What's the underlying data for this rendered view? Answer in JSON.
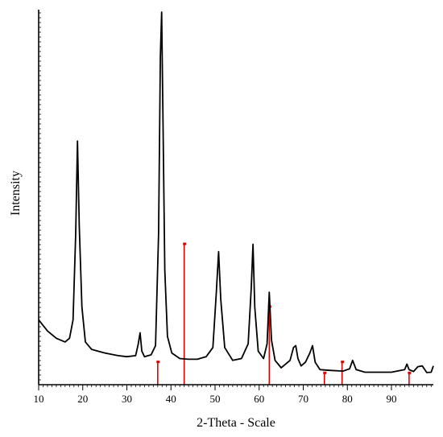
{
  "chart_data": {
    "type": "line",
    "xlabel": "2-Theta - Scale",
    "ylabel": "Intensity",
    "xlim": [
      10,
      99.5
    ],
    "ylim": [
      0,
      100
    ],
    "x_ticks": [
      10,
      20,
      30,
      40,
      50,
      60,
      70,
      80,
      90
    ],
    "grid": false,
    "series": [
      {
        "color": "#000000",
        "x": [
          10,
          12,
          14,
          16,
          17,
          17.8,
          18.4,
          18.8,
          19.2,
          19.8,
          20.6,
          22,
          25,
          28,
          30,
          32,
          32.6,
          33,
          33.4,
          34,
          35.5,
          36.5,
          37.2,
          37.6,
          37.9,
          38.2,
          38.6,
          39.2,
          40.2,
          42,
          44,
          46,
          48,
          49.5,
          50.3,
          50.8,
          51.3,
          52.2,
          54,
          56,
          57.5,
          58.2,
          58.6,
          59,
          59.8,
          61,
          61.8,
          62.3,
          62.8,
          63.6,
          65,
          67,
          67.8,
          68.3,
          68.8,
          69.5,
          70.5,
          71.5,
          72.1,
          72.7,
          73.8,
          76,
          79,
          80.5,
          81.2,
          82,
          84,
          87,
          90,
          93,
          93.5,
          94,
          95,
          96,
          97,
          98,
          99,
          99.5
        ],
        "y": [
          16.5,
          13.5,
          11.5,
          10.5,
          11.5,
          16.5,
          40,
          65,
          42,
          20,
          10.5,
          8.5,
          7.5,
          6.8,
          6.5,
          6.8,
          10,
          13,
          8,
          6.5,
          7,
          9.5,
          40,
          88,
          100,
          70,
          30,
          12,
          7.5,
          6,
          5.8,
          5.8,
          6.5,
          9,
          24,
          35,
          22,
          9,
          5.5,
          6,
          10,
          25,
          37,
          20,
          8,
          6,
          10,
          24,
          11,
          5.5,
          3.5,
          5.5,
          9,
          9.5,
          6,
          4,
          5,
          7.5,
          9.5,
          5,
          3,
          2.8,
          2.6,
          3.2,
          5.5,
          3,
          2.3,
          2.3,
          2.3,
          3,
          4.5,
          3,
          2.5,
          3.8,
          4,
          2.2,
          2.3,
          4
        ]
      }
    ],
    "reference_lines": {
      "color": "#e00000",
      "x": [
        37.0,
        43.0,
        62.3,
        74.8,
        78.8,
        94.0
      ],
      "heights": [
        5,
        37,
        20,
        2,
        5,
        2
      ]
    }
  }
}
